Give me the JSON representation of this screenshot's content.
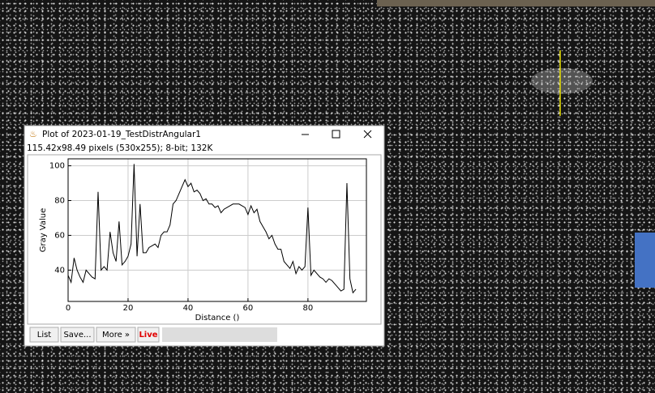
{
  "window": {
    "title": "Plot of 2023-01-19_TestDistrAngular1",
    "info": "115.42x98.49 pixels (530x255); 8-bit; 132K"
  },
  "buttons": [
    "List",
    "Save...",
    "More »",
    "Live"
  ],
  "chart_data": {
    "type": "line",
    "xlabel": "Distance ()",
    "ylabel": "Gray Value",
    "color": "#000000",
    "grid": true,
    "xlim": [
      0,
      99.5
    ],
    "xticks": [
      0,
      20,
      40,
      60,
      80
    ],
    "ylim": [
      22,
      104
    ],
    "yticks": [
      40,
      60,
      80,
      100
    ],
    "x": [
      0,
      1,
      2,
      3,
      4,
      5,
      6,
      7,
      8,
      9,
      10,
      11,
      12,
      13,
      14,
      15,
      16,
      17,
      18,
      19,
      20,
      21,
      22,
      23,
      24,
      25,
      26,
      27,
      28,
      29,
      30,
      31,
      32,
      33,
      34,
      35,
      36,
      37,
      38,
      39,
      40,
      41,
      42,
      43,
      44,
      45,
      46,
      47,
      48,
      49,
      50,
      51,
      52,
      53,
      54,
      55,
      56,
      57,
      58,
      59,
      60,
      61,
      62,
      63,
      64,
      65,
      66,
      67,
      68,
      69,
      70,
      71,
      72,
      73,
      74,
      75,
      76,
      77,
      78,
      79,
      80,
      81,
      82,
      83,
      84,
      85,
      86,
      87,
      88,
      89,
      90,
      91,
      92,
      93,
      94,
      95,
      96
    ],
    "values": [
      37,
      33,
      47,
      40,
      36,
      33,
      40,
      38,
      36,
      35,
      85,
      40,
      42,
      40,
      62,
      50,
      45,
      68,
      43,
      45,
      48,
      55,
      101,
      48,
      78,
      50,
      50,
      53,
      54,
      55,
      53,
      60,
      62,
      62,
      66,
      78,
      80,
      84,
      88,
      92,
      88,
      90,
      85,
      86,
      84,
      80,
      81,
      78,
      78,
      76,
      77,
      73,
      75,
      76,
      77,
      78,
      78,
      78,
      77,
      76,
      72,
      77,
      73,
      75,
      68,
      65,
      62,
      58,
      60,
      55,
      52,
      52,
      45,
      43,
      41,
      45,
      38,
      42,
      40,
      42,
      76,
      37,
      40,
      38,
      36,
      35,
      33,
      35,
      34,
      32,
      30,
      28,
      29,
      90,
      35,
      27,
      29
    ]
  }
}
